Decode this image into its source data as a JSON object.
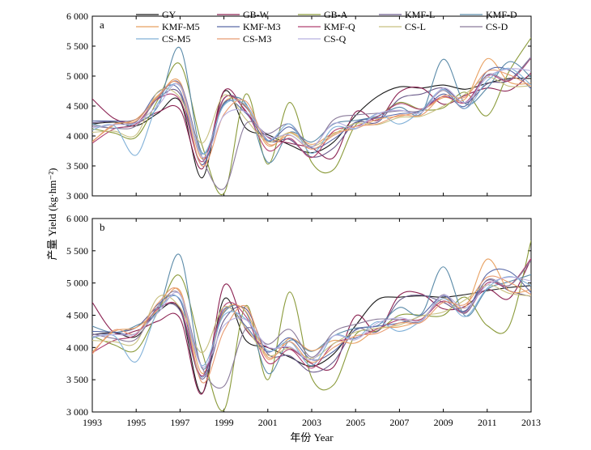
{
  "chart_data": {
    "type": "line",
    "xlabel": "年份 Year",
    "ylabel": "产量 Yield (kg·hm⁻²)",
    "x_ticks": [
      "1993",
      "1995",
      "1997",
      "1999",
      "2001",
      "2003",
      "2005",
      "2007",
      "2009",
      "2011",
      "2013"
    ],
    "y_ticks": [
      "3 000",
      "3 500",
      "4 000",
      "4 500",
      "5 000",
      "5 500",
      "6 000"
    ],
    "xlim": [
      1993,
      2013
    ],
    "ylim": [
      3000,
      6000
    ],
    "legend_placement": "top-right",
    "x": [
      1993,
      1994,
      1995,
      1996,
      1997,
      1998,
      1999,
      2000,
      2001,
      2002,
      2003,
      2004,
      2005,
      2006,
      2007,
      2008,
      2009,
      2010,
      2011,
      2012,
      2013
    ],
    "series_styles": [
      {
        "name": "GY",
        "color": "#1a1a1a"
      },
      {
        "name": "GB-W",
        "color": "#8b2252"
      },
      {
        "name": "GB-A",
        "color": "#8a9a3a"
      },
      {
        "name": "KMF-L",
        "color": "#6a5a8a"
      },
      {
        "name": "KMF-D",
        "color": "#5a8aa8"
      },
      {
        "name": "KMF-M5",
        "color": "#e8a060"
      },
      {
        "name": "KMF-M3",
        "color": "#5a6aa8"
      },
      {
        "name": "KMF-Q",
        "color": "#b04070"
      },
      {
        "name": "CS-L",
        "color": "#c8c080"
      },
      {
        "name": "CS-D",
        "color": "#8a7a9a"
      },
      {
        "name": "CS-M5",
        "color": "#80b0d8"
      },
      {
        "name": "CS-M3",
        "color": "#e89a70"
      },
      {
        "name": "CS-Q",
        "color": "#b8b0e0"
      }
    ],
    "panels": [
      {
        "label": "a",
        "series": [
          {
            "name": "GY",
            "values": [
              4200,
              4230,
              4170,
              4380,
              4580,
              3300,
              4740,
              4130,
              4020,
              3850,
              3720,
              3900,
              4340,
              4660,
              4820,
              4800,
              4850,
              4780,
              4880,
              4960,
              4960
            ]
          },
          {
            "name": "GB-W",
            "values": [
              4620,
              4290,
              4220,
              4400,
              4440,
              3450,
              4750,
              4400,
              3980,
              3880,
              3800,
              3640,
              4400,
              4260,
              4730,
              4800,
              4530,
              4680,
              4800,
              4760,
              5050
            ]
          },
          {
            "name": "GB-A",
            "values": [
              4120,
              4050,
              3980,
              4610,
              5200,
              3850,
              3040,
              4700,
              3530,
              4560,
              3560,
              3440,
              4180,
              4320,
              4560,
              4440,
              4470,
              4730,
              4340,
              5080,
              5640
            ]
          },
          {
            "name": "KMF-L",
            "values": [
              4220,
              4250,
              4280,
              4630,
              4700,
              3520,
              4620,
              4480,
              3930,
              3940,
              3650,
              3800,
              4220,
              4230,
              4620,
              4700,
              4800,
              4550,
              4870,
              4930,
              5320
            ]
          },
          {
            "name": "KMF-D",
            "values": [
              4200,
              4130,
              4220,
              4500,
              5470,
              3720,
              4530,
              4540,
              3560,
              4060,
              3900,
              4200,
              4260,
              4330,
              4480,
              4380,
              5280,
              4540,
              4800,
              5240,
              4980
            ]
          },
          {
            "name": "KMF-M5",
            "values": [
              3910,
              4180,
              4280,
              4660,
              4900,
              3620,
              4560,
              4500,
              3840,
              4060,
              3860,
              4050,
              4120,
              4280,
              4330,
              4420,
              4640,
              4620,
              5290,
              4900,
              4880
            ]
          },
          {
            "name": "KMF-M3",
            "values": [
              4250,
              4250,
              4240,
              4730,
              4750,
              3520,
              4550,
              4380,
              3920,
              4150,
              3800,
              3950,
              4230,
              4300,
              4370,
              4420,
              4700,
              4500,
              5080,
              5100,
              4790
            ]
          },
          {
            "name": "KMF-Q",
            "values": [
              3880,
              4120,
              4200,
              4620,
              4600,
              3570,
              4630,
              4420,
              3760,
              3960,
              3640,
              4080,
              4160,
              4320,
              4540,
              4450,
              4660,
              4560,
              5010,
              4920,
              5300
            ]
          },
          {
            "name": "CS-L",
            "values": [
              4060,
              4080,
              4020,
              4740,
              4640,
              3880,
              4680,
              4280,
              3900,
              4050,
              3830,
              4030,
              4210,
              4190,
              4310,
              4330,
              4500,
              4700,
              4980,
              4830,
              4840
            ]
          },
          {
            "name": "CS-D",
            "values": [
              4170,
              4130,
              4170,
              4640,
              4870,
              3650,
              3120,
              4200,
              4040,
              4200,
              3820,
              4270,
              4350,
              4380,
              4420,
              4430,
              4760,
              4460,
              5020,
              4940,
              5310
            ]
          },
          {
            "name": "CS-M5",
            "values": [
              4100,
              4170,
              3680,
              4550,
              4830,
              3700,
              4510,
              4520,
              3930,
              4200,
              3710,
              4140,
              4120,
              4370,
              4200,
              4430,
              4780,
              4460,
              4920,
              5130,
              4850
            ]
          },
          {
            "name": "CS-M3",
            "values": [
              3900,
              4200,
              4250,
              4680,
              4840,
              3500,
              4360,
              4580,
              3870,
              4010,
              3780,
              4010,
              4160,
              4200,
              4350,
              4350,
              4670,
              4650,
              5080,
              5020,
              4830
            ]
          },
          {
            "name": "CS-Q",
            "values": [
              4140,
              4190,
              4220,
              4510,
              4840,
              3650,
              4340,
              4400,
              3990,
              4020,
              3820,
              4210,
              4130,
              4370,
              4430,
              4390,
              4800,
              4560,
              4980,
              5120,
              5090
            ]
          }
        ]
      },
      {
        "label": "b",
        "series": [
          {
            "name": "GY",
            "values": [
              4200,
              4230,
              4170,
              4560,
              4590,
              3290,
              4750,
              4110,
              4000,
              3850,
              3710,
              3900,
              4340,
              4740,
              4780,
              4800,
              4780,
              4820,
              4880,
              4930,
              4960
            ]
          },
          {
            "name": "GB-W",
            "values": [
              4700,
              4230,
              4260,
              4410,
              4450,
              3280,
              4960,
              4280,
              4000,
              3990,
              3750,
              3700,
              4490,
              4250,
              4810,
              4830,
              4600,
              4640,
              4900,
              4760,
              5370
            ]
          },
          {
            "name": "GB-A",
            "values": [
              4180,
              4040,
              3960,
              4560,
              5110,
              3940,
              3030,
              4650,
              3500,
              4860,
              3530,
              3420,
              4200,
              4260,
              4500,
              4500,
              4500,
              4780,
              4340,
              4330,
              5660
            ]
          },
          {
            "name": "KMF-L",
            "values": [
              4200,
              4230,
              4310,
              4620,
              4570,
              3510,
              4420,
              4600,
              3900,
              3870,
              3620,
              3780,
              4280,
              4250,
              4730,
              4810,
              4700,
              4570,
              5040,
              4880,
              4790
            ]
          },
          {
            "name": "KMF-D",
            "values": [
              4330,
              4230,
              4340,
              4580,
              5430,
              3680,
              4540,
              4550,
              3600,
              4110,
              3940,
              4180,
              4300,
              4340,
              4620,
              4520,
              5250,
              4490,
              4900,
              5020,
              5130
            ]
          },
          {
            "name": "KMF-M5",
            "values": [
              3930,
              4250,
              4310,
              4580,
              4880,
              3600,
              4560,
              4560,
              3820,
              4140,
              3950,
              4110,
              4070,
              4290,
              4320,
              4440,
              4760,
              4630,
              5370,
              4880,
              4900
            ]
          },
          {
            "name": "KMF-M3",
            "values": [
              4250,
              4240,
              4220,
              4670,
              4730,
              3540,
              4590,
              4330,
              3930,
              4150,
              3810,
              3940,
              4270,
              4330,
              4380,
              4500,
              4800,
              4560,
              5140,
              5180,
              4850
            ]
          },
          {
            "name": "KMF-Q",
            "values": [
              3920,
              4110,
              4200,
              4600,
              4610,
              3560,
              4640,
              4480,
              3760,
              3970,
              3680,
              4060,
              4150,
              4290,
              4430,
              4440,
              4720,
              4540,
              5000,
              4960,
              5380
            ]
          },
          {
            "name": "CS-L",
            "values": [
              4110,
              4090,
              4080,
              4780,
              4620,
              3920,
              4630,
              4300,
              3880,
              3990,
              3830,
              4060,
              4240,
              4300,
              4350,
              4490,
              4550,
              4740,
              4970,
              4840,
              4800
            ]
          },
          {
            "name": "CS-D",
            "values": [
              4210,
              4140,
              4130,
              4640,
              4820,
              3690,
              3400,
              4290,
              4050,
              4280,
              3850,
              4240,
              4360,
              4440,
              4430,
              4410,
              4820,
              4530,
              5050,
              4960,
              5350
            ]
          },
          {
            "name": "CS-M5",
            "values": [
              4150,
              4180,
              3780,
              4570,
              4750,
              3720,
              4500,
              4440,
              3950,
              4090,
              3720,
              4180,
              4140,
              4400,
              4250,
              4420,
              4760,
              4480,
              4920,
              5100,
              4960
            ]
          },
          {
            "name": "CS-M3",
            "values": [
              3900,
              4270,
              4220,
              4690,
              4850,
              3460,
              4260,
              4640,
              3850,
              4090,
              3770,
              4000,
              4180,
              4220,
              4380,
              4390,
              4700,
              4670,
              5090,
              5010,
              4820
            ]
          },
          {
            "name": "CS-Q",
            "values": [
              4170,
              4200,
              4220,
              4540,
              4820,
              3700,
              4340,
              4430,
              4010,
              4010,
              3810,
              4180,
              4120,
              4380,
              4460,
              4420,
              4810,
              4610,
              4970,
              5090,
              5030
            ]
          }
        ]
      }
    ]
  }
}
